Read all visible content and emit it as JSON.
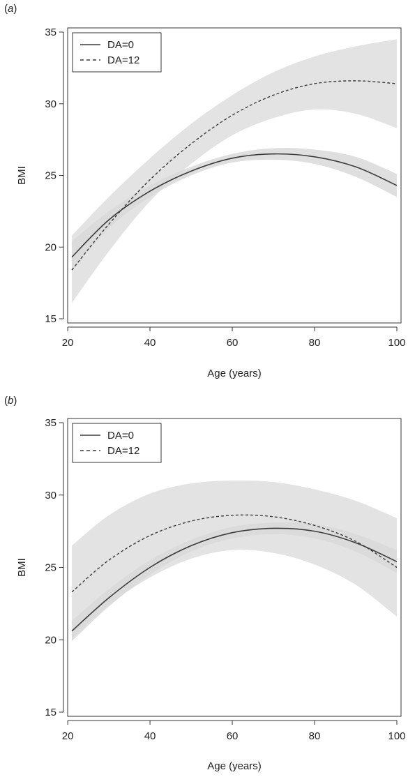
{
  "panels": [
    {
      "label_prefix": "(",
      "label_letter": "a",
      "label_suffix": ")"
    },
    {
      "label_prefix": "(",
      "label_letter": "b",
      "label_suffix": ")"
    }
  ],
  "chart_data": [
    {
      "type": "line",
      "panel": "a",
      "title": "",
      "xlabel": "Age (years)",
      "ylabel": "BMI",
      "xlim": [
        21,
        100
      ],
      "ylim": [
        15,
        35
      ],
      "xticks": [
        20,
        40,
        60,
        80,
        100
      ],
      "yticks": [
        15,
        20,
        25,
        30,
        35
      ],
      "grid": false,
      "legend_position": "top-left",
      "band_color": "#d9d9d9",
      "line_color": "#3c3c3c",
      "series": [
        {
          "name": "DA=0",
          "style": "solid",
          "x": [
            21,
            30,
            40,
            50,
            60,
            70,
            80,
            90,
            100
          ],
          "y": [
            19.3,
            21.9,
            23.9,
            25.3,
            26.2,
            26.5,
            26.3,
            25.6,
            24.3
          ],
          "lower": [
            18.3,
            21.3,
            23.5,
            25.0,
            25.9,
            26.1,
            25.8,
            24.9,
            23.5
          ],
          "upper": [
            20.4,
            22.5,
            24.3,
            25.6,
            26.5,
            26.9,
            26.8,
            26.3,
            25.1
          ]
        },
        {
          "name": "DA=12",
          "style": "dashed",
          "x": [
            21,
            30,
            40,
            50,
            60,
            70,
            80,
            90,
            100
          ],
          "y": [
            18.4,
            21.6,
            24.7,
            27.2,
            29.2,
            30.6,
            31.4,
            31.6,
            31.4
          ],
          "lower": [
            16.1,
            19.7,
            23.2,
            25.8,
            27.8,
            29.0,
            29.6,
            29.3,
            28.3
          ],
          "upper": [
            20.8,
            23.5,
            26.2,
            28.6,
            30.6,
            32.2,
            33.3,
            34.0,
            34.5
          ]
        }
      ]
    },
    {
      "type": "line",
      "panel": "b",
      "title": "",
      "xlabel": "Age (years)",
      "ylabel": "BMI",
      "xlim": [
        21,
        100
      ],
      "ylim": [
        15,
        35
      ],
      "xticks": [
        20,
        40,
        60,
        80,
        100
      ],
      "yticks": [
        15,
        20,
        25,
        30,
        35
      ],
      "grid": false,
      "legend_position": "top-left",
      "band_color": "#d9d9d9",
      "line_color": "#3c3c3c",
      "series": [
        {
          "name": "DA=0",
          "style": "solid",
          "x": [
            21,
            30,
            40,
            50,
            60,
            70,
            80,
            90,
            100
          ],
          "y": [
            20.6,
            22.9,
            25.0,
            26.5,
            27.4,
            27.7,
            27.5,
            26.7,
            25.4
          ],
          "lower": [
            19.9,
            22.3,
            24.5,
            26.1,
            27.0,
            27.3,
            27.0,
            26.1,
            24.6
          ],
          "upper": [
            21.3,
            23.5,
            25.5,
            26.9,
            27.8,
            28.1,
            28.0,
            27.3,
            26.2
          ]
        },
        {
          "name": "DA=12",
          "style": "dashed",
          "x": [
            21,
            30,
            40,
            50,
            60,
            70,
            80,
            90,
            100
          ],
          "y": [
            23.3,
            25.5,
            27.2,
            28.2,
            28.6,
            28.5,
            27.9,
            26.8,
            25.0
          ],
          "lower": [
            20.1,
            22.4,
            24.3,
            25.6,
            26.2,
            26.0,
            25.2,
            23.8,
            21.6
          ],
          "upper": [
            26.5,
            28.6,
            30.1,
            30.8,
            31.0,
            30.9,
            30.4,
            29.6,
            28.4
          ]
        }
      ]
    }
  ]
}
